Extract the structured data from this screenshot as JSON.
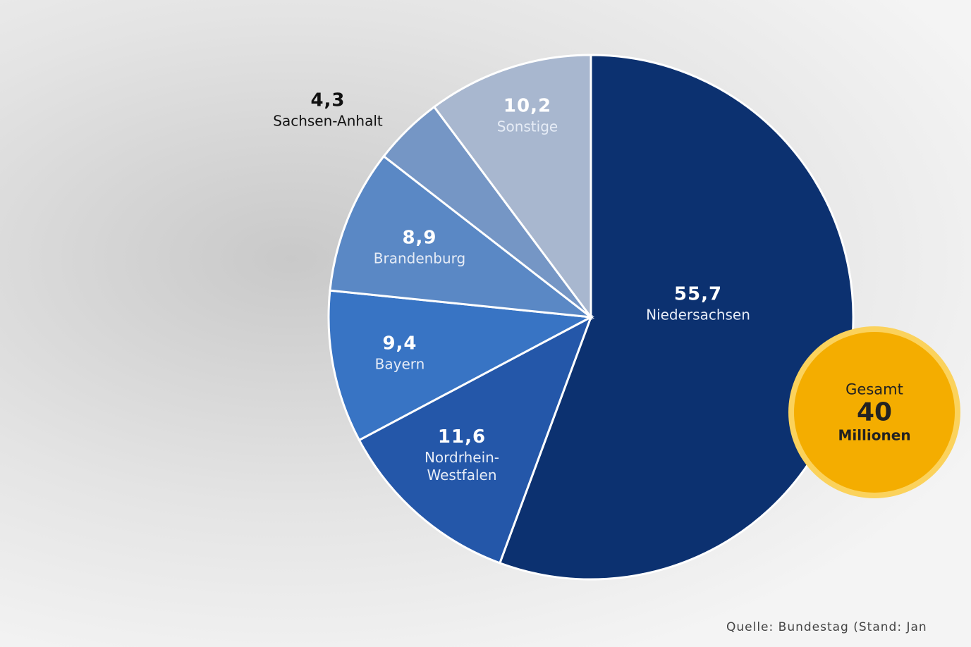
{
  "chart_data": {
    "type": "pie",
    "categories": [
      "Niedersachsen",
      "Nordrhein-Westfalen",
      "Bayern",
      "Brandenburg",
      "Sachsen-Anhalt",
      "Sonstige"
    ],
    "values": [
      55.7,
      11.6,
      9.4,
      8.9,
      4.3,
      10.2
    ],
    "value_labels": [
      "55,7",
      "11,6",
      "9,4",
      "8,9",
      "4,3",
      "10,2"
    ],
    "colors": [
      "#0c3170",
      "#2457a9",
      "#3874c4",
      "#5a88c5",
      "#7596c5",
      "#a8b7cf"
    ],
    "annotation": {
      "title": "Gesamt",
      "value": "40",
      "unit": "Millionen"
    },
    "source": "Quelle: Bundestag (Stand: Jan"
  }
}
